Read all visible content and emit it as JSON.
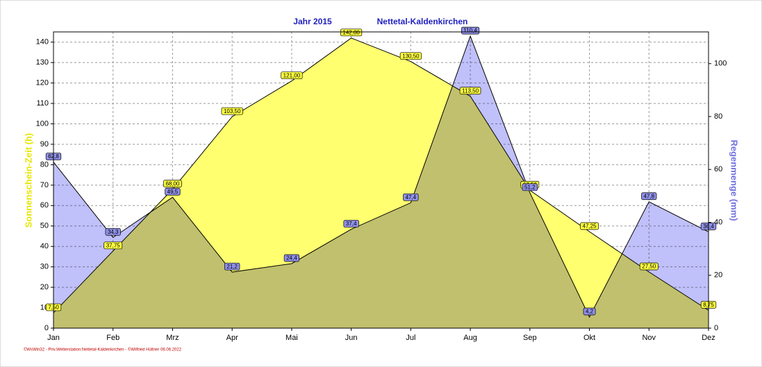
{
  "chart_data": {
    "type": "area",
    "title": "Jahr  2015",
    "subtitle": "Nettetal-Kaldenkirchen",
    "footer": "©WsWin32 - Priv.Wetterstation:Nettetal-Kaldenkirchen - ©Wilfried Hültner 06.06.2022",
    "y_label": "Sonnenschein-Zeit  (h)",
    "y2_label": "Regenmenge  (mm)",
    "categories": [
      "Jan",
      "Feb",
      "Mrz",
      "Apr",
      "Mai",
      "Jun",
      "Jul",
      "Aug",
      "Sep",
      "Okt",
      "Nov",
      "Dez"
    ],
    "series": [
      {
        "name": "Sonnenschein-Zeit",
        "color": "#ffff70",
        "axis": "y",
        "values": [
          7.5,
          37.75,
          68.0,
          103.5,
          121.0,
          142.0,
          130.5,
          113.5,
          67.5,
          47.25,
          27.5,
          8.75
        ],
        "value_labels": [
          "7,50",
          "37,75",
          "68,00",
          "103,50",
          "121,00",
          "142,00",
          "130,50",
          "113,50",
          "67,50",
          "47,25",
          "27,50",
          "8,75"
        ]
      },
      {
        "name": "Regenmenge",
        "color": "#c0c0fa",
        "axis": "y2",
        "values": [
          62.8,
          34.3,
          49.5,
          21.2,
          24.4,
          37.4,
          47.4,
          110.4,
          51.2,
          4.2,
          47.8,
          36.4
        ],
        "value_labels": [
          "62,8",
          "34,3",
          "49,5",
          "21,2",
          "24,4",
          "37,4",
          "47,4",
          "110,4",
          "51,2",
          "4,2",
          "47,8",
          "36,4"
        ]
      }
    ],
    "ylim": [
      0,
      145
    ],
    "yticks": [
      0,
      10,
      20,
      30,
      40,
      50,
      60,
      70,
      80,
      90,
      100,
      110,
      120,
      130,
      140
    ],
    "y2lim": [
      0,
      112
    ],
    "y2ticks": [
      0,
      20,
      40,
      60,
      80,
      100
    ],
    "grid": true
  }
}
